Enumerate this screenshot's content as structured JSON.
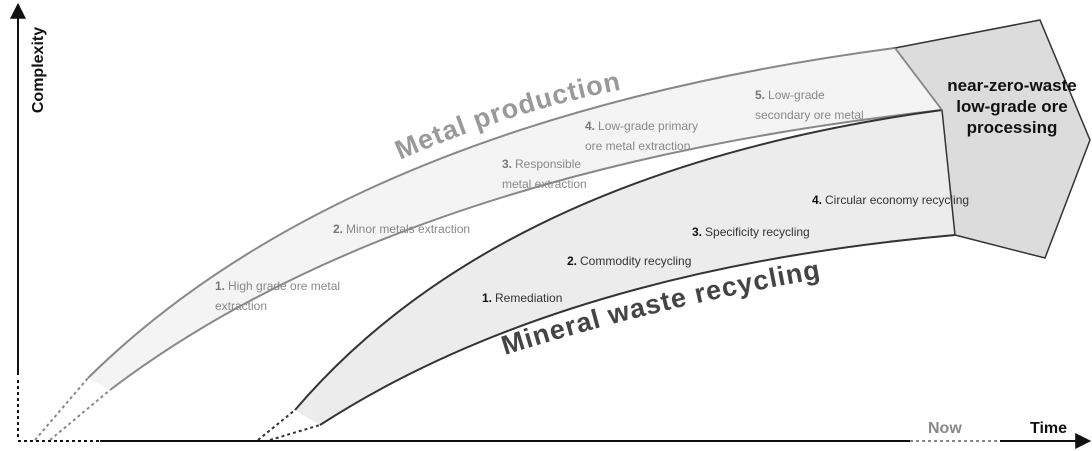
{
  "axes": {
    "y_label": "Complexity",
    "x_label": "Time",
    "now_label": "Now"
  },
  "bands": {
    "metal": "Metal production",
    "recycling": "Mineral waste recycling"
  },
  "target": {
    "lines": [
      "near-zero-waste",
      "low-grade ore",
      "processing"
    ]
  },
  "metal_steps": [
    {
      "number": "1.",
      "lines": [
        "High grade  ore metal",
        "extraction"
      ]
    },
    {
      "number": "2.",
      "lines": [
        "Minor metals extraction"
      ]
    },
    {
      "number": "3.",
      "lines": [
        "Responsible",
        "metal extraction"
      ]
    },
    {
      "number": "4.",
      "lines": [
        "Low-grade primary",
        "ore metal extraction"
      ]
    },
    {
      "number": "5.",
      "lines": [
        "Low-grade",
        "secondary ore metal"
      ]
    }
  ],
  "recycling_steps": [
    {
      "number": "1.",
      "lines": [
        "Remediation"
      ]
    },
    {
      "number": "2.",
      "lines": [
        "Commodity recycling"
      ]
    },
    {
      "number": "3.",
      "lines": [
        "Specificity recycling"
      ]
    },
    {
      "number": "4.",
      "lines": [
        "Circular economy recycling"
      ]
    }
  ]
}
